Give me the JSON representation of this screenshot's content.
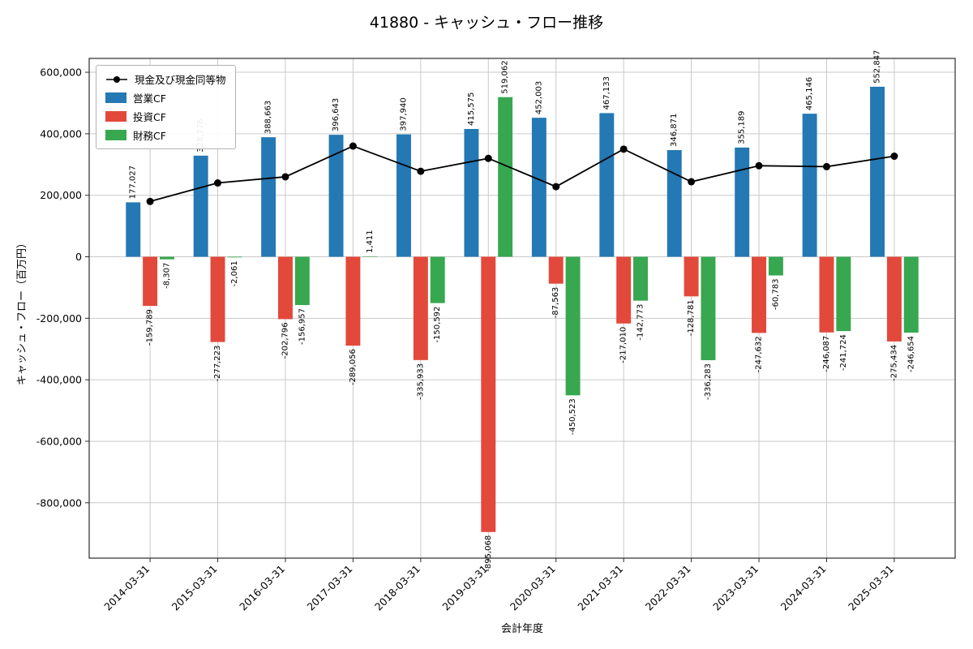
{
  "chart_data": {
    "type": "bar",
    "title": "41880 - キャッシュ・フロー推移",
    "xlabel": "会計年度",
    "ylabel": "キャッシュ・フロー（百万円）",
    "categories": [
      "2014-03-31",
      "2015-03-31",
      "2016-03-31",
      "2017-03-31",
      "2018-03-31",
      "2019-03-31",
      "2020-03-31",
      "2021-03-31",
      "2022-03-31",
      "2023-03-31",
      "2024-03-31",
      "2025-03-31"
    ],
    "series": [
      {
        "name": "営業CF",
        "color": "#2478b4",
        "values": [
          177027,
          328776,
          388663,
          396643,
          397940,
          415575,
          452003,
          467133,
          346871,
          355189,
          465146,
          552847
        ]
      },
      {
        "name": "投資CF",
        "color": "#e2493b",
        "values": [
          -159789,
          -277223,
          -202796,
          -289056,
          -335933,
          -895068,
          -87563,
          -217010,
          -128781,
          -247632,
          -246087,
          -275434
        ]
      },
      {
        "name": "財務CF",
        "color": "#37a750",
        "values": [
          -8307,
          -2061,
          -156957,
          1411,
          -150592,
          519062,
          -450523,
          -142773,
          -336283,
          -60783,
          -241724,
          -246654
        ]
      }
    ],
    "line_series": {
      "name": "現金及び現金同等物",
      "color": "#000000",
      "values": [
        180000,
        240000,
        260000,
        360000,
        278000,
        320000,
        228000,
        350000,
        244000,
        296000,
        293000,
        327000
      ]
    },
    "ylim": [
      -980000,
      645000
    ],
    "yticks": [
      600000,
      400000,
      200000,
      0,
      -200000,
      -400000,
      -600000,
      -800000
    ],
    "grid": true,
    "legend_position": "upper-left"
  }
}
